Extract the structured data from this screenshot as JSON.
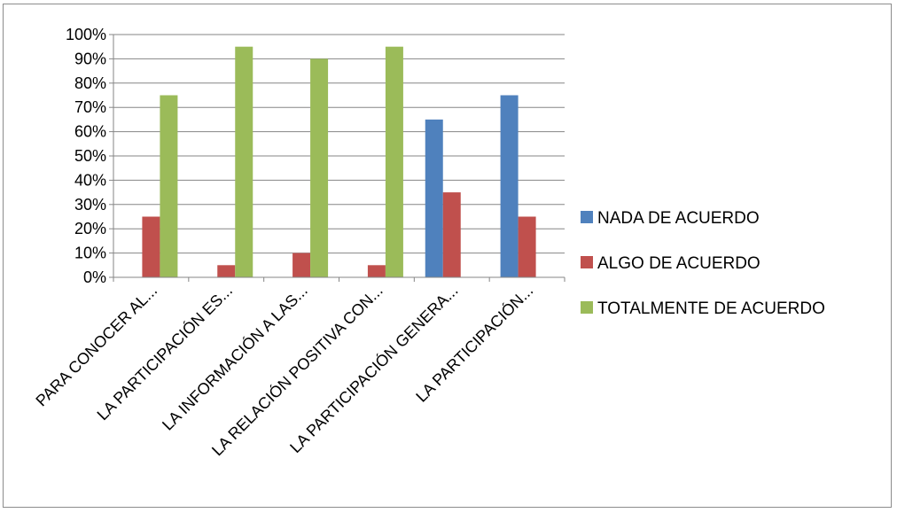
{
  "chart_data": {
    "type": "bar",
    "categories": [
      "PARA CONOCER AL...",
      "LA PARTICIPACIÓN ES...",
      "LA INFORMACIÓN A LAS...",
      "LA RELACIÓN POSITIVA CON...",
      "LA PARTICIPACIÓN GENERA...",
      "LA PARTICIPACIÓN..."
    ],
    "series": [
      {
        "name": "NADA DE ACUERDO",
        "color": "#4f81bd",
        "values": [
          0,
          0,
          0,
          0,
          65,
          75
        ]
      },
      {
        "name": "ALGO DE ACUERDO",
        "color": "#c0504d",
        "values": [
          25,
          5,
          10,
          5,
          35,
          25
        ]
      },
      {
        "name": "TOTALMENTE DE ACUERDO",
        "color": "#9bbb59",
        "values": [
          75,
          95,
          90,
          95,
          0,
          0
        ]
      }
    ],
    "ylim": [
      0,
      100
    ],
    "yticks": [
      "0%",
      "10%",
      "20%",
      "30%",
      "40%",
      "50%",
      "60%",
      "70%",
      "80%",
      "90%",
      "100%"
    ],
    "grid": true,
    "legend_position": "right"
  }
}
